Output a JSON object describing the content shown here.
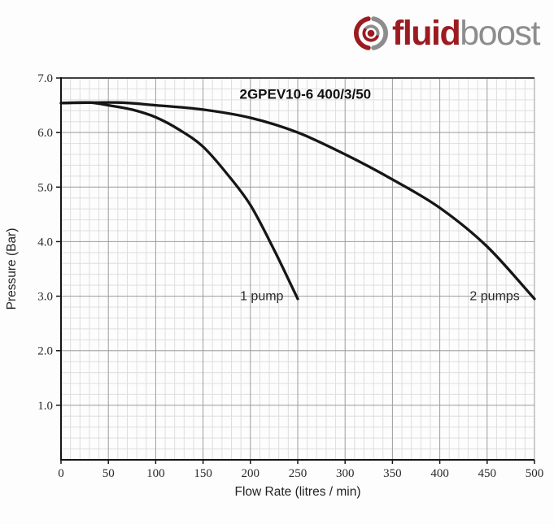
{
  "logo": {
    "brand_bold": "fluid",
    "brand_light": "boost",
    "bold_color": "#9b1c20",
    "light_color": "#8d8d8d"
  },
  "chart_data": {
    "type": "line",
    "title": "2GPEV10-6 400/3/50",
    "xlabel": "Flow Rate (litres / min)",
    "ylabel": "Pressure (Bar)",
    "xlim": [
      0,
      500
    ],
    "ylim": [
      0,
      7.0
    ],
    "x_ticks": [
      0,
      50,
      100,
      150,
      200,
      250,
      300,
      350,
      400,
      450,
      500
    ],
    "y_ticks": [
      1.0,
      2.0,
      3.0,
      4.0,
      5.0,
      6.0,
      7.0
    ],
    "x_minor_step": 10,
    "y_minor_step": 0.2,
    "grid": true,
    "legend_position": "inline-labels",
    "title_pos": {
      "x": 258,
      "y": 6.62
    },
    "series": [
      {
        "name": "1 pump",
        "label_pos": {
          "x": 212,
          "y": 2.93
        },
        "points": [
          [
            0,
            6.54
          ],
          [
            30,
            6.55
          ],
          [
            50,
            6.5
          ],
          [
            75,
            6.42
          ],
          [
            100,
            6.28
          ],
          [
            125,
            6.05
          ],
          [
            150,
            5.74
          ],
          [
            175,
            5.25
          ],
          [
            200,
            4.67
          ],
          [
            225,
            3.85
          ],
          [
            250,
            2.95
          ]
        ]
      },
      {
        "name": "2 pumps",
        "label_pos": {
          "x": 458,
          "y": 2.93
        },
        "points": [
          [
            0,
            6.54
          ],
          [
            60,
            6.55
          ],
          [
            100,
            6.5
          ],
          [
            150,
            6.42
          ],
          [
            200,
            6.27
          ],
          [
            250,
            6.0
          ],
          [
            300,
            5.6
          ],
          [
            350,
            5.14
          ],
          [
            400,
            4.62
          ],
          [
            450,
            3.91
          ],
          [
            500,
            2.95
          ]
        ]
      }
    ],
    "colors": {
      "curve": "#161616",
      "grid_minor": "#dedede",
      "grid_major": "#9c9c9c",
      "axis": "#141414",
      "plot_top_border": "#404040",
      "tick_text": "#2a2a2a",
      "axis_label_text": "#222222",
      "title_text": "#111111",
      "series_label_text": "#2b2b2b"
    }
  }
}
